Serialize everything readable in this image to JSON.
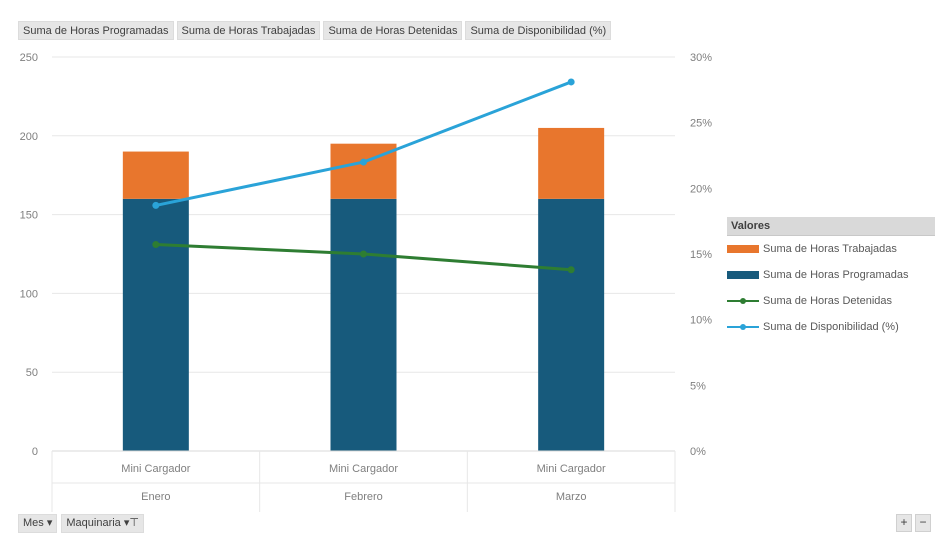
{
  "field_buttons": [
    "Suma de Horas Programadas",
    "Suma de Horas Trabajadas",
    "Suma de Horas Detenidas",
    "Suma de Disponibilidad (%)"
  ],
  "legend": {
    "title": "Valores",
    "items": [
      {
        "label": "Suma de Horas Trabajadas",
        "kind": "bar",
        "color": "#e8762d"
      },
      {
        "label": "Suma de Horas Programadas",
        "kind": "bar",
        "color": "#175a7c"
      },
      {
        "label": "Suma de Horas Detenidas",
        "kind": "line",
        "color": "#2e7d32"
      },
      {
        "label": "Suma de Disponibilidad (%)",
        "kind": "line",
        "color": "#2aa3d8"
      }
    ]
  },
  "bottom_buttons": {
    "mes": "Mes",
    "maquinaria": "Maquinaria"
  },
  "zoom": {
    "plus": "+",
    "minus": "−"
  },
  "chart_data": {
    "type": "bar",
    "stacked": true,
    "categories": [
      "Mini Cargador",
      "Mini Cargador",
      "Mini Cargador"
    ],
    "groups": [
      "Enero",
      "Febrero",
      "Marzo"
    ],
    "ylim": [
      0,
      250
    ],
    "y_ticks": [
      0,
      50,
      100,
      150,
      200,
      250
    ],
    "y2lim": [
      0,
      30
    ],
    "y2_ticks": [
      "0%",
      "5%",
      "10%",
      "15%",
      "20%",
      "25%",
      "30%"
    ],
    "grid": true,
    "series": [
      {
        "name": "Suma de Horas Programadas",
        "type": "bar",
        "axis": "left",
        "color": "#175a7c",
        "values": [
          160,
          160,
          160
        ]
      },
      {
        "name": "Suma de Horas Trabajadas",
        "type": "bar",
        "axis": "left",
        "color": "#e8762d",
        "values": [
          30,
          35,
          45
        ]
      },
      {
        "name": "Suma de Horas Detenidas",
        "type": "line",
        "axis": "left",
        "color": "#2e7d32",
        "values": [
          131,
          125,
          115
        ]
      },
      {
        "name": "Suma de Disponibilidad (%)",
        "type": "line",
        "axis": "right",
        "color": "#2aa3d8",
        "values": [
          18.7,
          22.0,
          28.1
        ]
      }
    ]
  }
}
